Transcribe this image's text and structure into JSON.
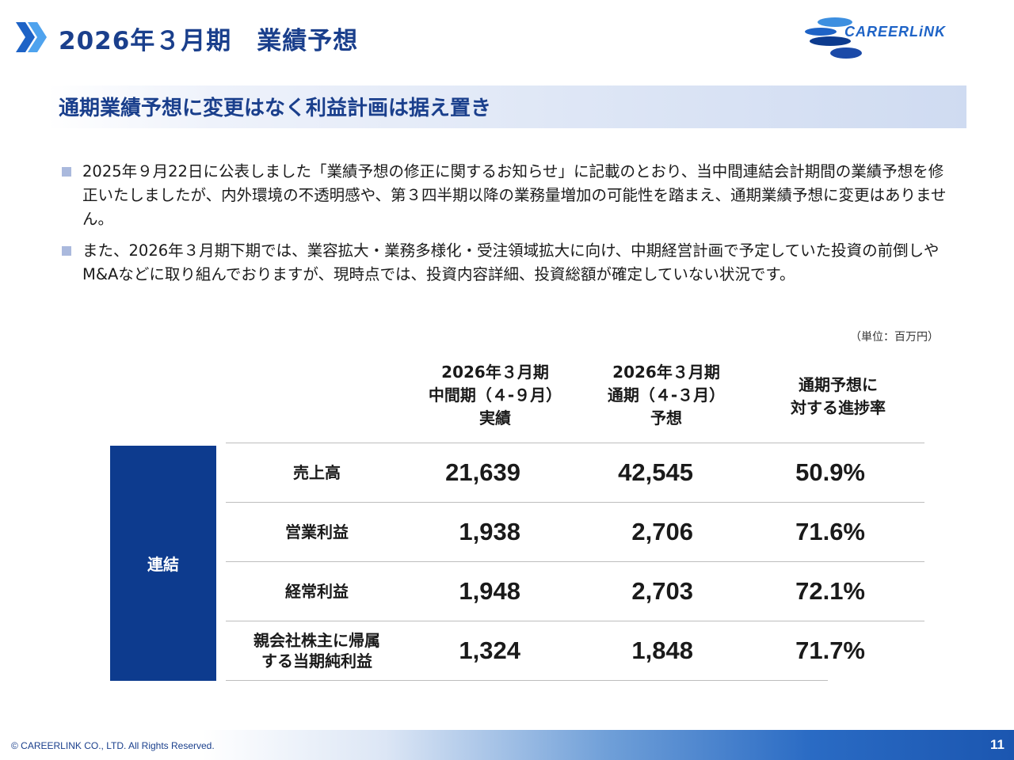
{
  "header": {
    "title": "2026年３月期　業績予想",
    "logo_text": "CAREERLiNK"
  },
  "subtitle": "通期業績予想に変更はなく利益計画は据え置き",
  "bullets": [
    "2025年９月22日に公表しました「業績予想の修正に関するお知らせ」に記載のとおり、当中間連結会計期間の業績予想を修正いたしましたが、内外環境の不透明感や、第３四半期以降の業務量増加の可能性を踏まえ、通期業績予想に変更はありません。",
    "また、2026年３月期下期では、業容拡大・業務多様化・受注領域拡大に向け、中期経営計画で予定していた投資の前倒しやM&Aなどに取り組んでおりますが、現時点では、投資内容詳細、投資総額が確定していない状況です。"
  ],
  "table": {
    "unit": "（単位：百万円）",
    "columns": [
      "2026年３月期\n中間期（４-９月）\n実績",
      "2026年３月期\n通期（４-３月）\n予想",
      "通期予想に\n対する進捗率"
    ],
    "group_label": "連結",
    "rows": [
      {
        "label": "売上高",
        "actual": "21,639",
        "forecast": "42,545",
        "rate": "50.9%"
      },
      {
        "label": "営業利益",
        "actual": "1,938",
        "forecast": "2,706",
        "rate": "71.6%"
      },
      {
        "label": "経常利益",
        "actual": "1,948",
        "forecast": "2,703",
        "rate": "72.1%"
      },
      {
        "label": "親会社株主に帰属\nする当期純利益",
        "actual": "1,324",
        "forecast": "1,848",
        "rate": "71.7%"
      }
    ]
  },
  "footer": {
    "copyright": "© CAREERLINK CO., LTD. All Rights Reserved.",
    "page_number": "11"
  },
  "colors": {
    "accent_navy": "#0d3b8e",
    "title_blue": "#1a3f8c",
    "chevron_blue": "#2f86e0"
  }
}
